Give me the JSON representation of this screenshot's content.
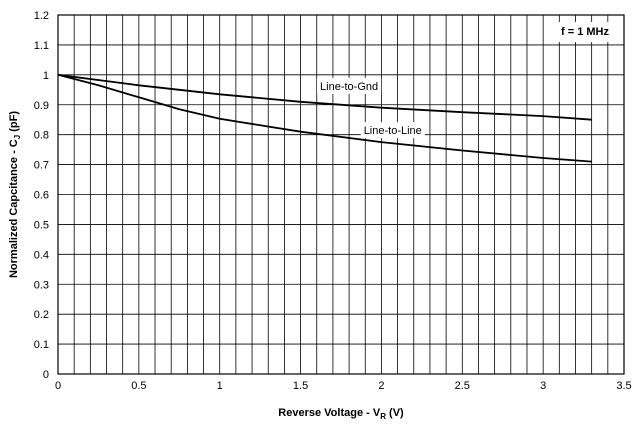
{
  "chart_data": {
    "type": "line",
    "title": "",
    "xlabel": {
      "text": "Reverse Voltage - V",
      "sub": "R",
      "suffix": " (V)"
    },
    "ylabel": {
      "text": "Normalized Capcitance - C",
      "sub": "J",
      "suffix": " (pF)"
    },
    "xlim": [
      0,
      3.5
    ],
    "ylim": [
      0,
      1.2
    ],
    "x_ticks": [
      0,
      0.5,
      1,
      1.5,
      2,
      2.5,
      3,
      3.5
    ],
    "x_tick_labels": [
      "0",
      "0.5",
      "1",
      "1.5",
      "2",
      "2.5",
      "3",
      "3.5"
    ],
    "x_minor_step": 0.1,
    "y_ticks": [
      0,
      0.1,
      0.2,
      0.3,
      0.4,
      0.5,
      0.6,
      0.7,
      0.8,
      0.9,
      1,
      1.1,
      1.2
    ],
    "y_tick_labels": [
      "0",
      "0.1",
      "0.2",
      "0.3",
      "0.4",
      "0.5",
      "0.6",
      "0.7",
      "0.8",
      "0.9",
      "1",
      "1.1",
      "1.2"
    ],
    "grid": true,
    "annotation": "f = 1 MHz",
    "series": [
      {
        "name": "Line-to-Gnd",
        "x": [
          0,
          0.5,
          1,
          1.5,
          2,
          2.5,
          3,
          3.3
        ],
        "y": [
          1.0,
          0.965,
          0.935,
          0.91,
          0.89,
          0.875,
          0.862,
          0.85
        ]
      },
      {
        "name": "Line-to-Line",
        "x": [
          0,
          0.25,
          0.5,
          0.75,
          1,
          1.5,
          2,
          2.5,
          3,
          3.3
        ],
        "y": [
          1.0,
          0.965,
          0.925,
          0.885,
          0.853,
          0.81,
          0.775,
          0.747,
          0.722,
          0.71
        ]
      }
    ]
  }
}
